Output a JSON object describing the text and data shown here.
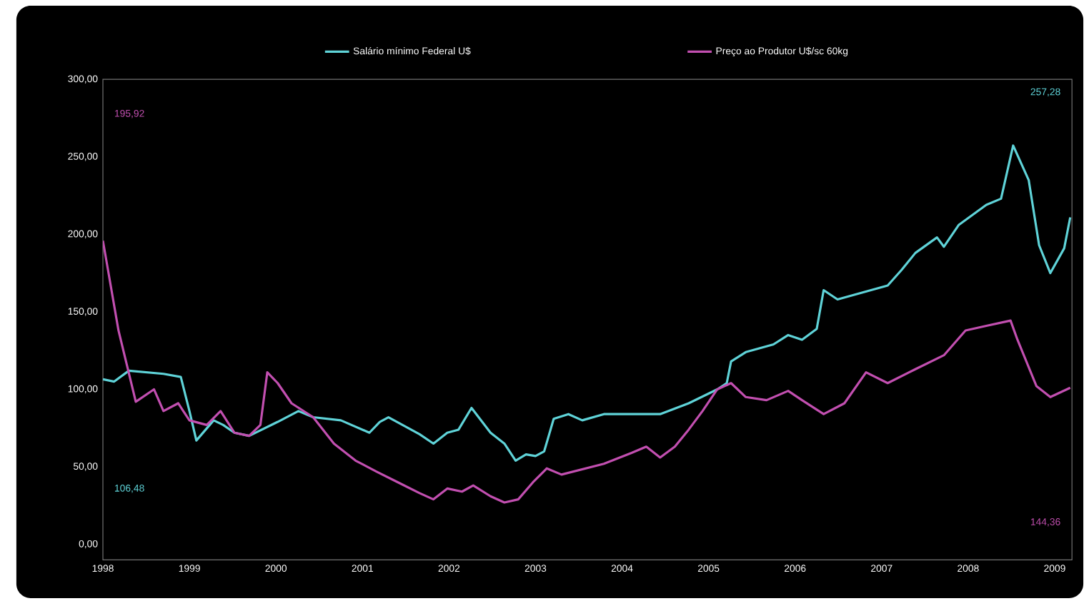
{
  "chart_data": {
    "type": "line",
    "legend": "top",
    "marker": "none",
    "line_style": "solid",
    "xlim": [
      1998,
      2009.2
    ],
    "ylim": [
      -10,
      300
    ],
    "xticks": [
      1998,
      1999,
      2000,
      2001,
      2002,
      2003,
      2004,
      2005,
      2006,
      2007,
      2008,
      2009
    ],
    "yticks": [
      {
        "value": 0,
        "label": "0,00"
      },
      {
        "value": 50,
        "label": "50,00"
      },
      {
        "value": 100,
        "label": "100,00"
      },
      {
        "value": 150,
        "label": "150,00"
      },
      {
        "value": 200,
        "label": "200,00"
      },
      {
        "value": 250,
        "label": "250,00"
      },
      {
        "value": 300,
        "label": "300,00"
      }
    ],
    "annotations": [
      "195,92",
      "257,28",
      "106,48",
      "144,36"
    ],
    "series": [
      {
        "name": "Salário mínimo Federal U$",
        "color": "#5fd3d8",
        "x": [
          1998.0,
          1998.13,
          1998.3,
          1998.7,
          1998.9,
          1999.0,
          1999.08,
          1999.28,
          1999.39,
          1999.52,
          1999.69,
          2000.02,
          2000.26,
          2000.43,
          2000.75,
          2001.08,
          2001.2,
          2001.3,
          2001.66,
          2001.82,
          2001.98,
          2002.11,
          2002.26,
          2002.48,
          2002.64,
          2002.77,
          2002.89,
          2003.0,
          2003.1,
          2003.21,
          2003.38,
          2003.54,
          2003.79,
          2004.44,
          2004.77,
          2005.1,
          2005.21,
          2005.26,
          2005.43,
          2005.75,
          2005.92,
          2006.08,
          2006.25,
          2006.33,
          2006.49,
          2007.07,
          2007.23,
          2007.39,
          2007.64,
          2007.72,
          2007.89,
          2008.21,
          2008.38,
          2008.52,
          2008.7,
          2008.82,
          2008.95,
          2009.11,
          2009.18
        ],
        "values": [
          106.48,
          105,
          112,
          110,
          108,
          86,
          67,
          80,
          77,
          72,
          70,
          79,
          86,
          82,
          80,
          72,
          79,
          82,
          71,
          65,
          72,
          74,
          88,
          72,
          65,
          54,
          58,
          57,
          60,
          81,
          84,
          80,
          84,
          84,
          91,
          100,
          104,
          118,
          124,
          129,
          135,
          132,
          139,
          164,
          158,
          167,
          177,
          188,
          198,
          192,
          206,
          219,
          223,
          257.28,
          235,
          193,
          175,
          191,
          211
        ]
      },
      {
        "name": "Preço ao Produtor U$/sc 60kg",
        "color": "#c24fb0",
        "x": [
          1998.0,
          1998.18,
          1998.38,
          1998.59,
          1998.7,
          1998.87,
          1999.0,
          1999.2,
          1999.36,
          1999.52,
          1999.69,
          1999.82,
          1999.9,
          2000.02,
          2000.18,
          2000.43,
          2000.67,
          2000.92,
          2001.16,
          2001.41,
          2001.66,
          2001.82,
          2001.98,
          2002.15,
          2002.28,
          2002.48,
          2002.64,
          2002.8,
          2002.97,
          2003.13,
          2003.3,
          2003.79,
          2004.11,
          2004.28,
          2004.44,
          2004.61,
          2004.77,
          2004.93,
          2005.1,
          2005.26,
          2005.43,
          2005.67,
          2005.92,
          2006.08,
          2006.33,
          2006.57,
          2006.82,
          2007.07,
          2007.39,
          2007.72,
          2007.97,
          2008.21,
          2008.49,
          2008.57,
          2008.79,
          2008.95,
          2009.18
        ],
        "values": [
          195.92,
          138,
          92,
          100,
          86,
          91,
          80,
          77,
          86,
          72,
          70,
          77,
          111,
          104,
          91,
          82,
          65,
          54,
          47,
          40,
          33,
          29,
          36,
          34,
          38,
          31,
          27,
          29,
          40,
          49,
          45,
          52,
          59,
          63,
          56,
          63,
          74,
          86,
          100,
          104,
          95,
          93,
          99,
          93,
          84,
          91,
          111,
          104,
          113,
          122,
          138,
          141,
          144.36,
          132,
          102,
          95,
          101
        ]
      }
    ]
  }
}
